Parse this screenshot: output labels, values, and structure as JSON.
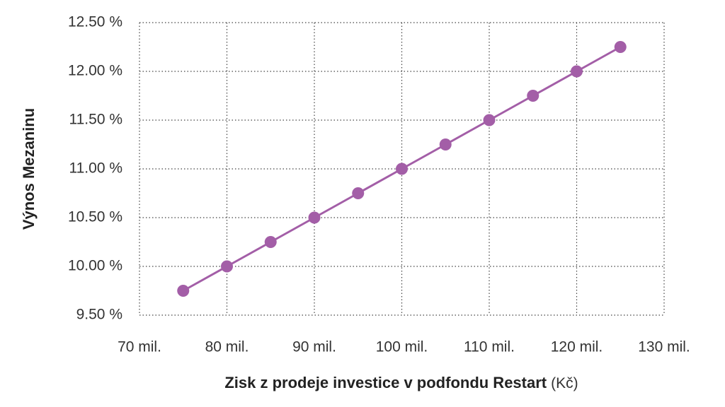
{
  "chart_data": {
    "type": "line",
    "x_label": "Zisk z prodeje investice v podfondu Restart",
    "x_label_unit": "(Kč)",
    "y_label": "Výnos Mezaninu",
    "x": [
      75000000,
      80000000,
      85000000,
      90000000,
      95000000,
      100000000,
      105000000,
      110000000,
      115000000,
      120000000,
      125000000
    ],
    "series": [
      {
        "name": "Výnos Mezaninu",
        "color": "#a35ea7",
        "values": [
          9.75,
          10.0,
          10.25,
          10.5,
          10.75,
          11.0,
          11.25,
          11.5,
          11.75,
          12.0,
          12.25
        ]
      }
    ],
    "xlim": [
      70000000,
      130000000
    ],
    "xticks": [
      {
        "value": 70000000,
        "label": "70 mil."
      },
      {
        "value": 80000000,
        "label": "80 mil."
      },
      {
        "value": 90000000,
        "label": "90 mil."
      },
      {
        "value": 100000000,
        "label": "100 mil."
      },
      {
        "value": 110000000,
        "label": "110 mil."
      },
      {
        "value": 120000000,
        "label": "120 mil."
      },
      {
        "value": 130000000,
        "label": "130 mil."
      }
    ],
    "ylim": [
      9.5,
      12.5
    ],
    "yticks": [
      {
        "value": 9.5,
        "label": "9.50 %"
      },
      {
        "value": 10.0,
        "label": "10.00 %"
      },
      {
        "value": 10.5,
        "label": "10.50 %"
      },
      {
        "value": 11.0,
        "label": "11.00 %"
      },
      {
        "value": 11.5,
        "label": "11.50 %"
      },
      {
        "value": 12.0,
        "label": "12.00 %"
      },
      {
        "value": 12.5,
        "label": "12.50 %"
      }
    ],
    "grid": true
  }
}
